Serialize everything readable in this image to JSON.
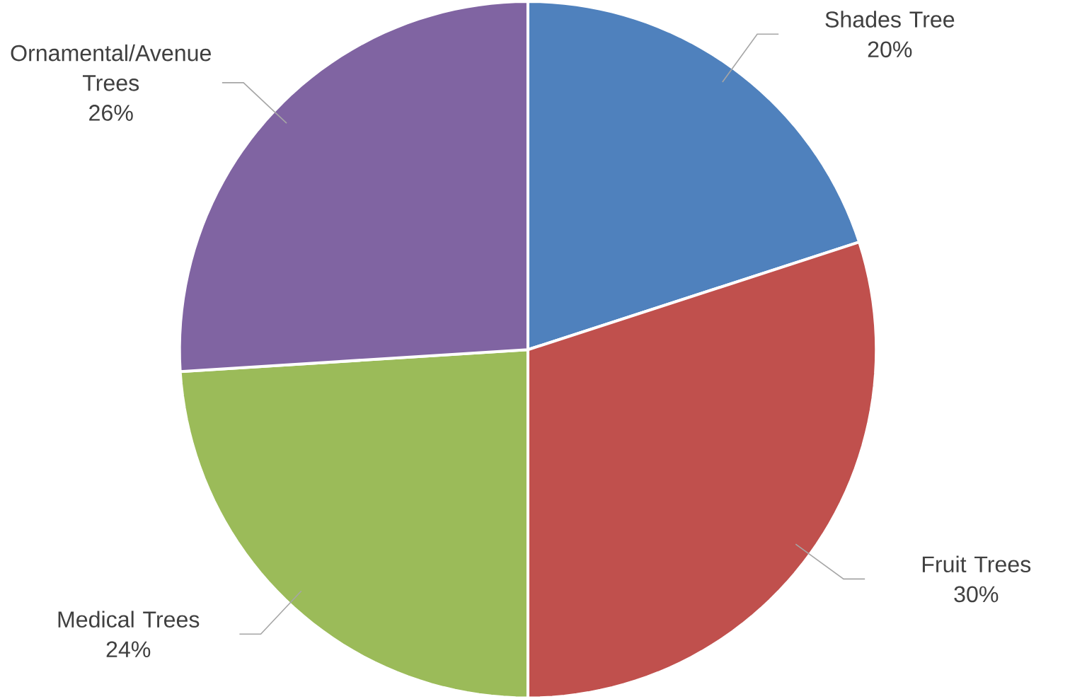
{
  "chart_data": {
    "type": "pie",
    "categories": [
      "Shades Tree",
      "Fruit Trees",
      "Medical Trees",
      "Ornamental/Avenue Trees"
    ],
    "values": [
      20,
      30,
      24,
      26
    ],
    "colors": [
      "#4f81bd",
      "#c0504d",
      "#9bbb59",
      "#8064a2"
    ],
    "value_labels": [
      "20%",
      "30%",
      "24%",
      "26%"
    ]
  }
}
